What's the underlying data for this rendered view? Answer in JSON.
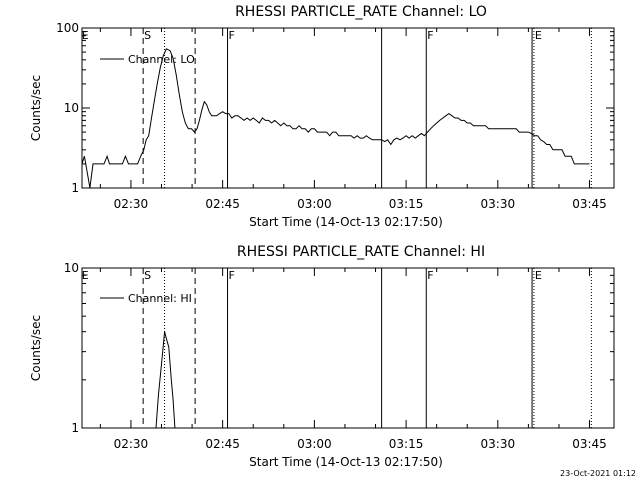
{
  "footer_timestamp": "23-Oct-2021 01:12",
  "chart_data": [
    {
      "type": "line",
      "title": "RHESSI PARTICLE_RATE Channel: LO",
      "xlabel": "Start Time (14-Oct-13 02:17:50)",
      "ylabel": "Counts/sec",
      "y_scale": "log",
      "ylim": [
        1,
        100
      ],
      "y_ticks": [
        1,
        10,
        100
      ],
      "y_tick_labels": [
        "1",
        "10",
        "100"
      ],
      "xlim_min": [
        22,
        109
      ],
      "x_ticks_min": [
        30,
        45,
        60,
        75,
        90,
        105
      ],
      "x_tick_labels": [
        "02:30",
        "02:45",
        "03:00",
        "03:15",
        "03:30",
        "03:45"
      ],
      "grid": false,
      "legend": {
        "position": "top-left",
        "entries": [
          "Channel: LO"
        ]
      },
      "markers": [
        {
          "x_min": 21.8,
          "label": "E",
          "style": "none"
        },
        {
          "x_min": 32.0,
          "label": "S",
          "style": "dashed"
        },
        {
          "x_min": 35.5,
          "label": "",
          "style": "dotted"
        },
        {
          "x_min": 40.5,
          "label": "",
          "style": "dashed"
        },
        {
          "x_min": 45.8,
          "label": "F",
          "style": "solid"
        },
        {
          "x_min": 71.0,
          "label": "",
          "style": "solid"
        },
        {
          "x_min": 78.3,
          "label": "F",
          "style": "solid"
        },
        {
          "x_min": 95.6,
          "label": "",
          "style": "solid"
        },
        {
          "x_min": 95.9,
          "label": "E",
          "style": "dotted"
        },
        {
          "x_min": 105.3,
          "label": "",
          "style": "dotted"
        }
      ],
      "series": [
        {
          "name": "Channel: LO",
          "x_min": [
            22,
            22.4,
            22.9,
            23.3,
            23.8,
            24.2,
            24.7,
            25.1,
            25.6,
            26.1,
            26.5,
            27,
            27.6,
            28.1,
            28.6,
            29.1,
            29.6,
            30.1,
            30.6,
            31.1,
            31.6,
            32.1,
            32.5,
            32.9,
            33.3,
            33.8,
            34.3,
            34.8,
            35.3,
            35.8,
            36.4,
            36.9,
            37.4,
            37.9,
            38.4,
            38.9,
            39.4,
            39.9,
            40.4,
            40.8,
            41.2,
            41.6,
            42,
            42.4,
            42.8,
            43.2,
            43.6,
            44,
            44.5,
            45,
            45.5,
            46,
            46.5,
            47,
            47.5,
            48,
            48.5,
            49,
            49.5,
            50,
            50.5,
            51,
            51.5,
            52,
            52.5,
            53,
            53.5,
            54,
            54.5,
            55,
            55.5,
            56,
            56.5,
            57,
            57.5,
            58,
            58.5,
            59,
            59.5,
            60,
            60.5,
            61,
            61.5,
            62,
            62.5,
            63,
            63.5,
            64,
            64.5,
            65,
            65.5,
            66,
            66.5,
            67,
            67.5,
            68,
            68.5,
            69,
            69.5,
            70,
            70.5,
            71,
            71.5,
            72,
            72.5,
            73,
            73.5,
            74,
            74.5,
            75,
            75.5,
            76,
            76.5,
            77,
            77.5,
            78,
            78.5,
            79,
            79.5,
            80,
            80.5,
            81,
            81.5,
            82,
            82.5,
            83,
            83.5,
            84,
            84.5,
            85,
            85.5,
            86,
            86.5,
            87,
            87.5,
            88,
            88.5,
            89,
            89.5,
            90,
            90.5,
            91,
            91.5,
            92,
            92.5,
            93,
            93.5,
            94,
            94.5,
            95,
            95.5,
            96,
            96.5,
            97,
            97.5,
            98,
            98.5,
            99,
            99.5,
            100,
            100.5,
            101,
            101.5,
            102,
            102.5,
            103,
            103.5,
            104,
            104.5,
            105
          ],
          "values": [
            2,
            2.5,
            1.5,
            1,
            2,
            2,
            2,
            2,
            2,
            2.5,
            2,
            2,
            2,
            2,
            2,
            2.5,
            2,
            2,
            2,
            2,
            2.5,
            3,
            4,
            4.5,
            7,
            12,
            20,
            32,
            45,
            55,
            52,
            42,
            26,
            15,
            9,
            6.5,
            5.5,
            5.5,
            5,
            5.5,
            7,
            9.5,
            12,
            11,
            9,
            8,
            8,
            8,
            8.5,
            9,
            8.5,
            8.5,
            7.5,
            8,
            8,
            7.5,
            7,
            7.5,
            7,
            7.5,
            7,
            6.5,
            7.5,
            7,
            7,
            6.5,
            7,
            6.5,
            6,
            6.5,
            6,
            6,
            5.5,
            5.5,
            6,
            5.5,
            5.5,
            5,
            5.5,
            5.5,
            5,
            5,
            5,
            5,
            4.5,
            5,
            5,
            4.5,
            4.5,
            4.5,
            4.5,
            4.5,
            4.2,
            4.5,
            4.2,
            4.2,
            4.5,
            4.2,
            4,
            4,
            4,
            4,
            3.8,
            4,
            3.5,
            4,
            4.2,
            4,
            4.2,
            4.5,
            4.2,
            4.5,
            4.2,
            4.5,
            4.8,
            4.5,
            5,
            5.5,
            6,
            6.5,
            7,
            7.5,
            8,
            8.5,
            8,
            7.5,
            7.5,
            7,
            7,
            6.5,
            6.5,
            6,
            6,
            6,
            6,
            6,
            5.5,
            5.5,
            5.5,
            5.5,
            5.5,
            5.5,
            5.5,
            5.5,
            5.5,
            5.5,
            5,
            5,
            5,
            5,
            4.8,
            4.5,
            4.5,
            4,
            3.8,
            3.5,
            3.5,
            3,
            3,
            3,
            3,
            2.5,
            2.5,
            2.5,
            2,
            2,
            2,
            2,
            2,
            2
          ]
        }
      ]
    },
    {
      "type": "line",
      "title": "RHESSI PARTICLE_RATE Channel: HI",
      "xlabel": "Start Time (14-Oct-13 02:17:50)",
      "ylabel": "Counts/sec",
      "y_scale": "log",
      "ylim": [
        1,
        10
      ],
      "y_ticks": [
        1,
        10
      ],
      "y_tick_labels": [
        "1",
        "10"
      ],
      "xlim_min": [
        22,
        109
      ],
      "x_ticks_min": [
        30,
        45,
        60,
        75,
        90,
        105
      ],
      "x_tick_labels": [
        "02:30",
        "02:45",
        "03:00",
        "03:15",
        "03:30",
        "03:45"
      ],
      "grid": false,
      "legend": {
        "position": "top-left",
        "entries": [
          "Channel: HI"
        ]
      },
      "markers": [
        {
          "x_min": 21.8,
          "label": "E",
          "style": "none"
        },
        {
          "x_min": 32.0,
          "label": "S",
          "style": "dashed"
        },
        {
          "x_min": 35.5,
          "label": "",
          "style": "dotted"
        },
        {
          "x_min": 40.5,
          "label": "",
          "style": "dashed"
        },
        {
          "x_min": 45.8,
          "label": "F",
          "style": "solid"
        },
        {
          "x_min": 71.0,
          "label": "",
          "style": "solid"
        },
        {
          "x_min": 78.3,
          "label": "F",
          "style": "solid"
        },
        {
          "x_min": 95.6,
          "label": "",
          "style": "solid"
        },
        {
          "x_min": 95.9,
          "label": "E",
          "style": "dotted"
        },
        {
          "x_min": 105.3,
          "label": "",
          "style": "dotted"
        }
      ],
      "series": [
        {
          "name": "Channel: HI",
          "x_min": [
            34.1,
            34.5,
            34.9,
            35.2,
            35.5,
            35.9,
            36.2,
            36.6,
            36.9,
            37.2,
            37.5
          ],
          "values": [
            1,
            1.6,
            2.3,
            3,
            4,
            3.5,
            3.2,
            2,
            1.5,
            1,
            1
          ]
        }
      ]
    }
  ]
}
